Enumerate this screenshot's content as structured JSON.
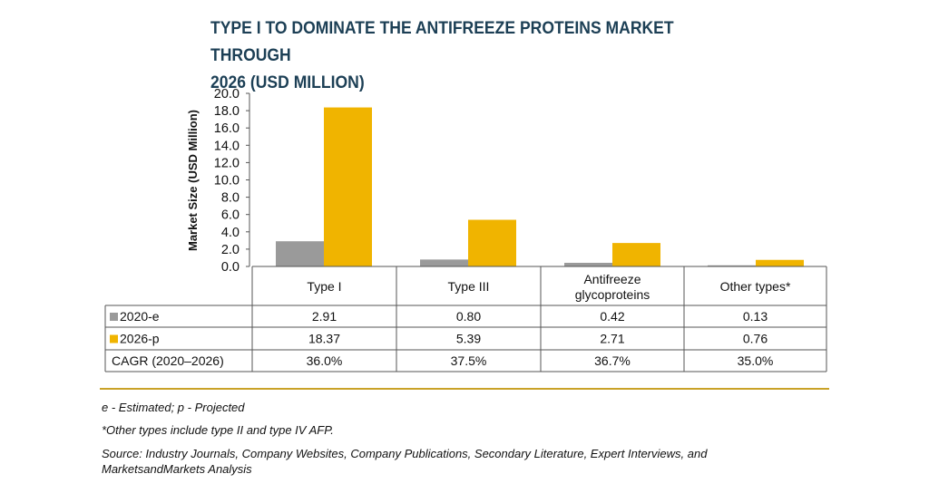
{
  "title_line1": "TYPE I TO DOMINATE THE ANTIFREEZE PROTEINS MARKET THROUGH",
  "title_line2": "2026 (USD MILLION)",
  "colors": {
    "series_2020": "#9a9a9a",
    "series_2026": "#f0b400",
    "title": "#1c3f55",
    "rule": "#c9a227"
  },
  "chart_data": {
    "type": "bar",
    "ylabel": "Market Size (USD Million)",
    "ylim": [
      0,
      20
    ],
    "yticks": [
      "0.0",
      "2.0",
      "4.0",
      "6.0",
      "8.0",
      "10.0",
      "12.0",
      "14.0",
      "16.0",
      "18.0",
      "20.0"
    ],
    "categories": [
      [
        "Type I"
      ],
      [
        "Type III"
      ],
      [
        "Antifreeze",
        "glycoproteins"
      ],
      [
        "Other types*"
      ]
    ],
    "series": [
      {
        "name": "2020-e",
        "values": [
          2.91,
          0.8,
          0.42,
          0.13
        ],
        "labels": [
          "2.91",
          "0.80",
          "0.42",
          "0.13"
        ],
        "color": "#9a9a9a"
      },
      {
        "name": "2026-p",
        "values": [
          18.37,
          5.39,
          2.71,
          0.76
        ],
        "labels": [
          "18.37",
          "5.39",
          "2.71",
          "0.76"
        ],
        "color": "#f0b400"
      }
    ],
    "extra_row": {
      "name": "CAGR (2020–2026)",
      "values": [
        "36.0%",
        "37.5%",
        "36.7%",
        "35.0%"
      ]
    },
    "grid": false,
    "legend": "table-rows"
  },
  "footnotes": {
    "estimated": "e - Estimated; p - Projected",
    "other_types": "*Other types include type II and type IV AFP.",
    "source_line1": "Source: Industry Journals, Company Websites, Company Publications, Secondary Literature, Expert Interviews, and",
    "source_line2": "MarketsandMarkets Analysis"
  }
}
